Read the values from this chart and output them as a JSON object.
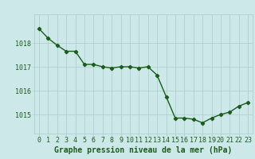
{
  "x": [
    0,
    1,
    2,
    3,
    4,
    5,
    6,
    7,
    8,
    9,
    10,
    11,
    12,
    13,
    14,
    15,
    16,
    17,
    18,
    19,
    20,
    21,
    22,
    23
  ],
  "y": [
    1018.6,
    1018.2,
    1017.9,
    1017.65,
    1017.65,
    1017.1,
    1017.1,
    1017.0,
    1016.95,
    1017.0,
    1017.0,
    1016.95,
    1017.0,
    1016.65,
    1015.75,
    1014.85,
    1014.85,
    1014.8,
    1014.65,
    1014.85,
    1015.0,
    1015.1,
    1015.35,
    1015.5
  ],
  "line_color": "#1a5c1a",
  "marker": "D",
  "marker_size": 2.2,
  "line_width": 1.0,
  "bg_color": "#cce8e8",
  "grid_color": "#aacccc",
  "xlabel": "Graphe pression niveau de la mer (hPa)",
  "xlabel_fontsize": 7,
  "xlabel_color": "#1a5c1a",
  "tick_label_color": "#1a5c1a",
  "tick_fontsize": 6,
  "ytick_labels": [
    "1015",
    "1016",
    "1017",
    "1018"
  ],
  "ytick_values": [
    1015,
    1016,
    1017,
    1018
  ],
  "ylim": [
    1014.2,
    1019.2
  ],
  "xlim": [
    -0.5,
    23.5
  ]
}
